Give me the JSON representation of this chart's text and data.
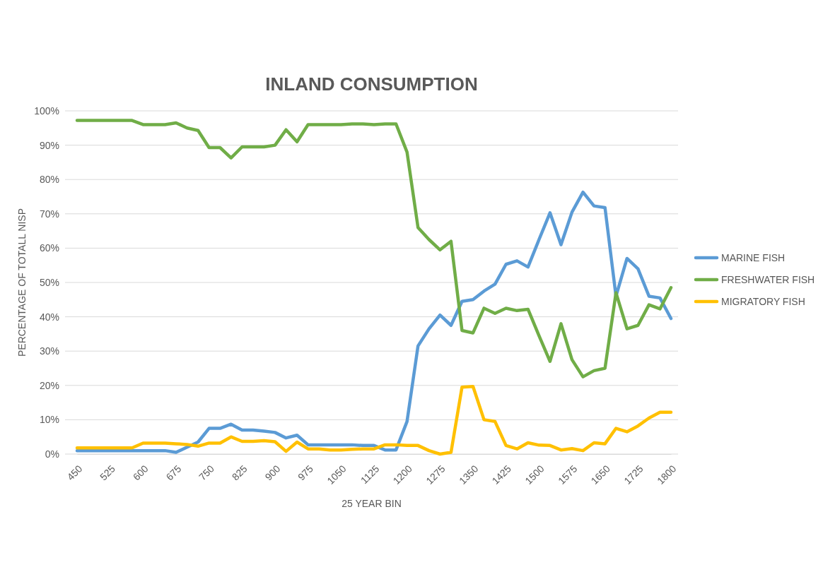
{
  "chart_data": {
    "type": "line",
    "title": "INLAND CONSUMPTION",
    "xlabel": "25 YEAR BIN",
    "ylabel": "PERCENTAGE OF TOTALL NISP",
    "categories": [
      "450",
      null,
      null,
      "525",
      null,
      null,
      "600",
      null,
      null,
      "675",
      null,
      null,
      "750",
      null,
      null,
      "825",
      null,
      null,
      "900",
      null,
      null,
      "975",
      null,
      null,
      "1050",
      null,
      null,
      "1125",
      null,
      null,
      "1200",
      null,
      null,
      "1275",
      null,
      null,
      "1350",
      null,
      null,
      "1425",
      null,
      null,
      "1500",
      null,
      null,
      "1575",
      null,
      null,
      "1650",
      null,
      null,
      "1725",
      null,
      null,
      "1800"
    ],
    "ylim": [
      0,
      100
    ],
    "yticks": [
      {
        "value": 0,
        "label": "0%"
      },
      {
        "value": 10,
        "label": "10%"
      },
      {
        "value": 20,
        "label": "20%"
      },
      {
        "value": 30,
        "label": "30%"
      },
      {
        "value": 40,
        "label": "40%"
      },
      {
        "value": 50,
        "label": "50%"
      },
      {
        "value": 60,
        "label": "60%"
      },
      {
        "value": 70,
        "label": "70%"
      },
      {
        "value": 80,
        "label": "80%"
      },
      {
        "value": 90,
        "label": "90%"
      },
      {
        "value": 100,
        "label": "100%"
      }
    ],
    "grid": "y",
    "legend": "right",
    "marker": "none",
    "line_style": "solid",
    "series": [
      {
        "name": "MARINE FISH",
        "color": "#5b9bd5",
        "values": [
          1,
          1,
          1,
          1,
          1,
          1,
          1,
          1,
          1,
          0.5,
          2,
          3.5,
          7.5,
          7.5,
          8.7,
          7,
          7,
          6.7,
          6.3,
          4.7,
          5.5,
          2.7,
          2.7,
          2.7,
          2.7,
          2.7,
          2.5,
          2.5,
          1.2,
          1.2,
          9.5,
          31.5,
          36.5,
          40.5,
          37.5,
          44.5,
          45,
          47.5,
          49.5,
          55.3,
          56.3,
          54.5,
          62.5,
          70.3,
          61,
          70.5,
          76.3,
          72.3,
          71.8,
          46,
          57,
          54,
          46,
          45.5,
          39.5
        ]
      },
      {
        "name": "FRESHWATER FISH",
        "color": "#70ad47",
        "values": [
          97.2,
          97.2,
          97.2,
          97.2,
          97.2,
          97.2,
          96,
          96,
          96,
          96.5,
          95,
          94.3,
          89.3,
          89.3,
          86.3,
          89.5,
          89.5,
          89.5,
          90,
          94.5,
          91,
          96,
          96,
          96,
          96,
          96.2,
          96.2,
          96,
          96.2,
          96.2,
          88,
          66,
          62.5,
          59.5,
          62,
          36,
          35.3,
          42.5,
          41,
          42.5,
          41.8,
          42.2,
          34.5,
          27,
          38,
          27.5,
          22.5,
          24.3,
          25,
          47,
          36.5,
          37.5,
          43.5,
          42.3,
          48.5
        ]
      },
      {
        "name": "MIGRATORY FISH",
        "color": "#ffc000",
        "values": [
          1.8,
          1.8,
          1.8,
          1.8,
          1.8,
          1.8,
          3.2,
          3.2,
          3.2,
          3,
          2.8,
          2.3,
          3.2,
          3.2,
          5,
          3.7,
          3.7,
          3.9,
          3.6,
          0.8,
          3.5,
          1.5,
          1.5,
          1.2,
          1.2,
          1.4,
          1.5,
          1.5,
          2.7,
          2.7,
          2.5,
          2.5,
          1,
          0,
          0.5,
          19.5,
          19.7,
          10,
          9.5,
          2.5,
          1.5,
          3.3,
          2.6,
          2.5,
          1.2,
          1.6,
          1,
          3.3,
          3,
          7.5,
          6.5,
          8.2,
          10.5,
          12.2,
          12.2
        ]
      }
    ]
  }
}
